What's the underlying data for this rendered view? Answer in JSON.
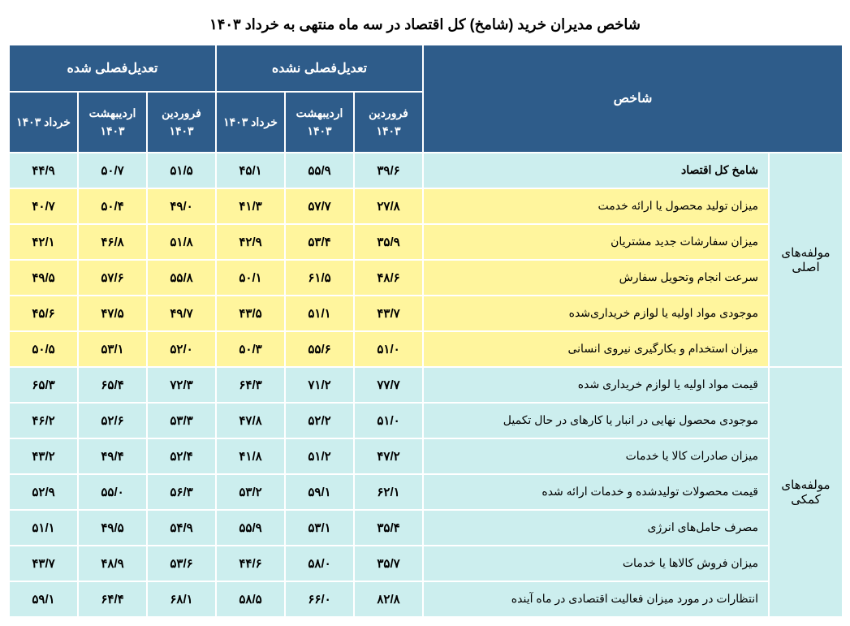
{
  "title": "شاخص مدیران خرید (شامخ) کل اقتصاد در سه ماه منتهی به خرداد ۱۴۰۳",
  "headers": {
    "index_label": "شاخص",
    "group_unadjusted": "تعدیل‌فصلی نشده",
    "group_adjusted": "تعدیل‌فصلی شده",
    "sub_farvardin": "فروردین ۱۴۰۳",
    "sub_ordibehesht": "اردیبهشت ۱۴۰۳",
    "sub_khordad": "خرداد ۱۴۰۳"
  },
  "sections": {
    "main": "مولفه‌های اصلی",
    "secondary": "مولفه‌های کمکی"
  },
  "rows": {
    "r0": {
      "label": "شامخ کل اقتصاد",
      "c1": "۳۹/۶",
      "c2": "۵۵/۹",
      "c3": "۴۵/۱",
      "c4": "۵۱/۵",
      "c5": "۵۰/۷",
      "c6": "۴۴/۹"
    },
    "r1": {
      "label": "میزان تولید محصول یا ارائه خدمت",
      "c1": "۲۷/۸",
      "c2": "۵۷/۷",
      "c3": "۴۱/۳",
      "c4": "۴۹/۰",
      "c5": "۵۰/۴",
      "c6": "۴۰/۷"
    },
    "r2": {
      "label": "میزان سفارشات جدید مشتریان",
      "c1": "۳۵/۹",
      "c2": "۵۳/۴",
      "c3": "۴۲/۹",
      "c4": "۵۱/۸",
      "c5": "۴۶/۸",
      "c6": "۴۲/۱"
    },
    "r3": {
      "label": "سرعت انجام وتحویل سفارش",
      "c1": "۴۸/۶",
      "c2": "۶۱/۵",
      "c3": "۵۰/۱",
      "c4": "۵۵/۸",
      "c5": "۵۷/۶",
      "c6": "۴۹/۵"
    },
    "r4": {
      "label": "موجودی مواد اولیه یا لوازم خریداری‌شده",
      "c1": "۴۳/۷",
      "c2": "۵۱/۱",
      "c3": "۴۳/۵",
      "c4": "۴۹/۷",
      "c5": "۴۷/۵",
      "c6": "۴۵/۶"
    },
    "r5": {
      "label": "میزان استخدام و بکارگیری نیروی انسانی",
      "c1": "۵۱/۰",
      "c2": "۵۵/۶",
      "c3": "۵۰/۳",
      "c4": "۵۲/۰",
      "c5": "۵۳/۱",
      "c6": "۵۰/۵"
    },
    "r6": {
      "label": "قیمت مواد اولیه یا لوازم خریداری شده",
      "c1": "۷۷/۷",
      "c2": "۷۱/۲",
      "c3": "۶۴/۳",
      "c4": "۷۲/۳",
      "c5": "۶۵/۴",
      "c6": "۶۵/۳"
    },
    "r7": {
      "label": "موجودی محصول نهایی در انبار یا کارهای در حال تکمیل",
      "c1": "۵۱/۰",
      "c2": "۵۲/۲",
      "c3": "۴۷/۸",
      "c4": "۵۳/۳",
      "c5": "۵۲/۶",
      "c6": "۴۶/۲"
    },
    "r8": {
      "label": "میزان صادرات کالا یا خدمات",
      "c1": "۴۷/۲",
      "c2": "۵۱/۲",
      "c3": "۴۱/۸",
      "c4": "۵۲/۴",
      "c5": "۴۹/۴",
      "c6": "۴۳/۲"
    },
    "r9": {
      "label": "قیمت محصولات تولیدشده و خدمات ارائه شده",
      "c1": "۶۲/۱",
      "c2": "۵۹/۱",
      "c3": "۵۳/۲",
      "c4": "۵۶/۳",
      "c5": "۵۵/۰",
      "c6": "۵۲/۹"
    },
    "r10": {
      "label": "مصرف حامل‌های انرژی",
      "c1": "۳۵/۴",
      "c2": "۵۳/۱",
      "c3": "۵۵/۹",
      "c4": "۵۴/۹",
      "c5": "۴۹/۵",
      "c6": "۵۱/۱"
    },
    "r11": {
      "label": "میزان فروش کالاها یا خدمات",
      "c1": "۳۵/۷",
      "c2": "۵۸/۰",
      "c3": "۴۴/۶",
      "c4": "۵۳/۶",
      "c5": "۴۸/۹",
      "c6": "۴۳/۷"
    },
    "r12": {
      "label": "انتظارات در مورد میزان فعالیت اقتصادی در ماه آینده",
      "c1": "۸۲/۸",
      "c2": "۶۶/۰",
      "c3": "۵۸/۵",
      "c4": "۶۸/۱",
      "c5": "۶۴/۴",
      "c6": "۵۹/۱"
    }
  },
  "colors": {
    "header_bg": "#2e5c8a",
    "header_text": "#ffffff",
    "cyan_bg": "#cceeee",
    "yellow_bg": "#fff59d",
    "border": "#ffffff",
    "text": "#000000"
  }
}
